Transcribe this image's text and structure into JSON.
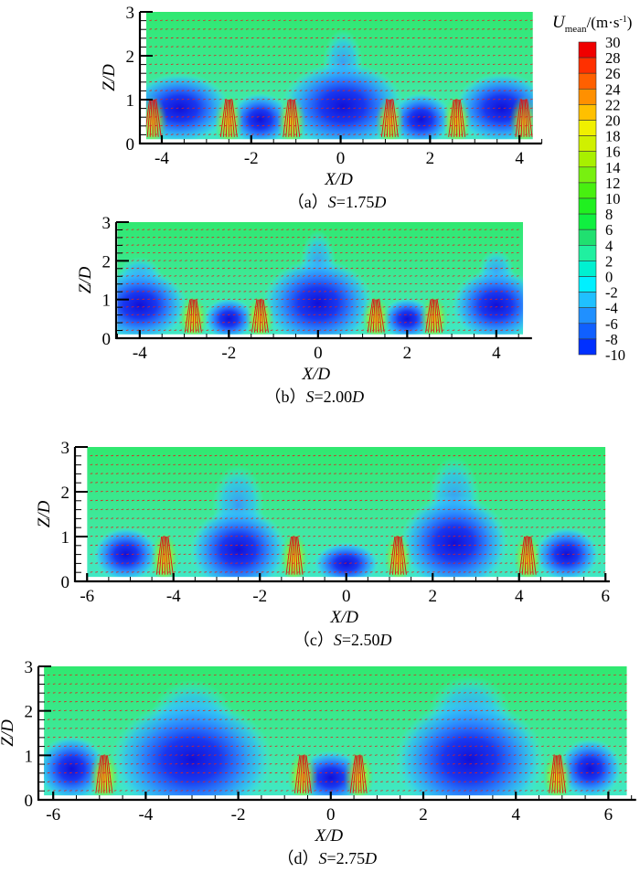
{
  "colorbar": {
    "title_main": "U",
    "title_sub": "mean",
    "title_unit": "/(m·s",
    "title_exp": "-1",
    "title_close": ")",
    "levels": [
      30,
      28,
      26,
      24,
      22,
      20,
      18,
      16,
      14,
      12,
      10,
      8,
      6,
      4,
      2,
      0,
      -2,
      -4,
      -6,
      -8,
      -10
    ],
    "colors": [
      "#f00000",
      "#ff3000",
      "#ff6000",
      "#ff9000",
      "#ffc000",
      "#f0f000",
      "#d0f000",
      "#a8f000",
      "#78f010",
      "#48f010",
      "#20f020",
      "#10f040",
      "#20e070",
      "#20f0a0",
      "#00f0d0",
      "#00f0ff",
      "#20c0ff",
      "#2090ff",
      "#1060ff",
      "#0030ff"
    ]
  },
  "chart_data": [
    {
      "type": "heatmap",
      "caption_prefix": "（a）",
      "caption_s": "S",
      "caption_value": "=1.75",
      "caption_d": "D",
      "xlabel": "X/D",
      "ylabel": "Z/D",
      "xlim": [
        -4.5,
        4.5
      ],
      "ylim": [
        0,
        3
      ],
      "xticks": [
        -4,
        -2,
        0,
        2,
        4
      ],
      "yticks": [
        0,
        1,
        2,
        3
      ],
      "field_xrange": [
        -4.35,
        4.3
      ],
      "vortices": [
        [
          -3.6,
          0.8,
          0.9,
          0.6
        ],
        [
          -1.8,
          0.55,
          0.55,
          0.45
        ],
        [
          0.05,
          0.85,
          1.1,
          0.75
        ],
        [
          1.8,
          0.55,
          0.55,
          0.45
        ],
        [
          3.6,
          0.8,
          0.85,
          0.6
        ]
      ],
      "plumes": [
        [
          0.05,
          1.8,
          0.45,
          0.8
        ]
      ],
      "jets": [
        -4.2,
        -2.5,
        -1.1,
        1.1,
        2.6,
        4.1
      ]
    },
    {
      "type": "heatmap",
      "caption_prefix": "（b）",
      "caption_s": "S",
      "caption_value": "=2.00",
      "caption_d": "D",
      "xlabel": "X/D",
      "ylabel": "Z/D",
      "xlim": [
        -4.6,
        4.8
      ],
      "ylim": [
        0,
        3
      ],
      "xticks": [
        -4,
        -2,
        0,
        2,
        4
      ],
      "yticks": [
        0,
        1,
        2,
        3
      ],
      "field_xrange": [
        -4.5,
        4.6
      ],
      "vortices": [
        [
          -4,
          0.85,
          0.85,
          0.7
        ],
        [
          -2,
          0.5,
          0.45,
          0.4
        ],
        [
          0,
          0.9,
          1.0,
          0.85
        ],
        [
          2,
          0.5,
          0.45,
          0.4
        ],
        [
          4,
          0.85,
          0.8,
          0.7
        ]
      ],
      "plumes": [
        [
          0,
          1.9,
          0.4,
          0.9
        ],
        [
          -4,
          1.6,
          0.5,
          0.5
        ],
        [
          4,
          1.7,
          0.4,
          0.6
        ]
      ],
      "jets": [
        -2.8,
        -1.3,
        1.3,
        2.6
      ]
    },
    {
      "type": "heatmap",
      "caption_prefix": "（c）",
      "caption_s": "S",
      "caption_value": "=2.50",
      "caption_d": "D",
      "xlabel": "X/D",
      "ylabel": "Z/D",
      "xlim": [
        -6.3,
        6.1
      ],
      "ylim": [
        0,
        3
      ],
      "xticks": [
        -6,
        -4,
        -2,
        0,
        2,
        4,
        6
      ],
      "yticks": [
        0,
        1,
        2,
        3
      ],
      "field_xrange": [
        -6.0,
        6.0
      ],
      "vortices": [
        [
          -5.1,
          0.6,
          0.6,
          0.45
        ],
        [
          -2.5,
          0.7,
          0.9,
          0.7
        ],
        [
          0,
          0.4,
          0.6,
          0.35
        ],
        [
          2.5,
          0.85,
          1.0,
          0.8
        ],
        [
          5.1,
          0.6,
          0.6,
          0.45
        ]
      ],
      "plumes": [
        [
          -2.5,
          1.7,
          0.6,
          0.9
        ],
        [
          2.5,
          1.8,
          0.6,
          1.0
        ]
      ],
      "jets": [
        -4.2,
        -1.2,
        1.2,
        4.2
      ]
    },
    {
      "type": "heatmap",
      "caption_prefix": "（d）",
      "caption_s": "S",
      "caption_value": "=2.75",
      "caption_d": "D",
      "xlabel": "X/D",
      "ylabel": "Z/D",
      "xlim": [
        -6.3,
        6.6
      ],
      "ylim": [
        0,
        3
      ],
      "xticks": [
        -6,
        -4,
        -2,
        0,
        2,
        4,
        6
      ],
      "yticks": [
        0,
        1,
        2,
        3
      ],
      "field_xrange": [
        -6.2,
        6.4
      ],
      "vortices": [
        [
          -5.6,
          0.7,
          0.6,
          0.55
        ],
        [
          -3,
          0.9,
          1.4,
          1.0
        ],
        [
          0,
          0.5,
          0.6,
          0.45
        ],
        [
          3,
          0.9,
          1.3,
          1.0
        ],
        [
          5.6,
          0.7,
          0.55,
          0.5
        ]
      ],
      "plumes": [
        [
          -3,
          1.8,
          0.9,
          0.9
        ],
        [
          3,
          1.9,
          0.9,
          0.9
        ]
      ],
      "jets": [
        -4.9,
        -0.6,
        0.6,
        4.9
      ]
    }
  ]
}
